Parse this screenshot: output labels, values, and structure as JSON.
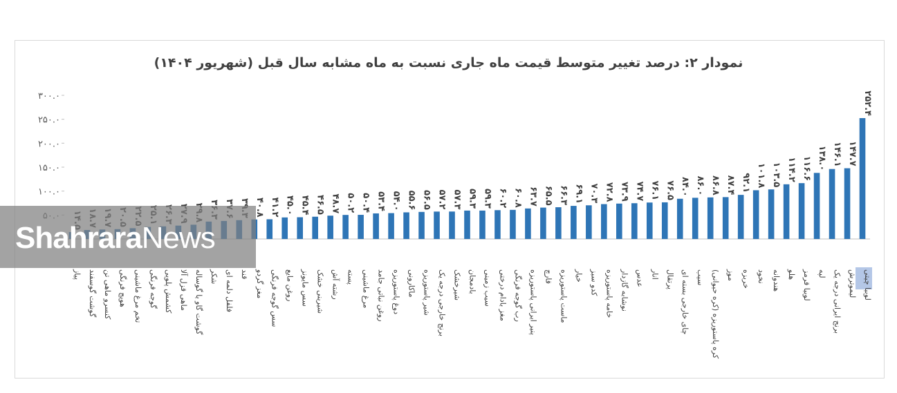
{
  "chart_data": {
    "type": "bar",
    "title": "نمودار ۲: درصد تغییر متوسط قیمت ماه جاری نسبت به ماه مشابه سال قبل (شهریور ۱۴۰۴)",
    "ylim": [
      0,
      300
    ],
    "y_ticks": [
      "۰.۰",
      "۵۰.۰",
      "۱۰۰.۰",
      "۱۵۰.۰",
      "۲۰۰.۰",
      "۲۵۰.۰",
      "۳۰۰.۰"
    ],
    "grid": false,
    "legend": "none",
    "bar_color": "#2e75b6",
    "categories": [
      "پیاز",
      "گوشت گوسفند",
      "کنسرو ماهی تن",
      "هویج فرنگی",
      "تخم مرغ ماشینی",
      "گوجه فرنگی",
      "کشمش پلویی",
      "ماهی قزل آلا",
      "گوشت گاو یا گوساله",
      "شکر",
      "فلفل دلمه ای",
      "قند",
      "مغز گردو",
      "سس گوجه فرنگی",
      "روغن مایع",
      "سس مایونز",
      "شیرینی خشک",
      "رشته آش",
      "پسته",
      "مرغ ماشینی",
      "روغن نباتی جامد",
      "دوغ پاستوریزه",
      "ماکارونی",
      "شیر پاستوریزه",
      "برنج خارجی درجه یک",
      "شیرخشک",
      "بادمجان",
      "سیب زمینی",
      "مغز بادام درختی",
      "رب گوجه فرنگی",
      "پنیر ایرانی پاستوریزه",
      "قارچ",
      "ماست پاستوریزه",
      "خیار",
      "کدو سبز",
      "خامه پاستوریزه",
      "نوشابه گازدار",
      "عدس",
      "انار",
      "پرتقال",
      "چای خارجی بسته ای",
      "سیب",
      "کره پاستوریزه (کره حیوانی)",
      "موز",
      "خربزه",
      "نخود",
      "هندوانه",
      "هلو",
      "لوبیا قرمز",
      "لپه",
      "برنج ایرانی درجه یک",
      "لیموترش",
      "لوبیا چیتی"
    ],
    "category_labels": [
      "پیاز",
      "گوشت گوسفند",
      "کنسرو ماهی تن",
      "هویج فرنگی",
      "تخم مرغ ماشینی",
      "گوجه فرنگی",
      "کشمش پلویی",
      "ماهی قزل آلا",
      "گوشت گاو یا گوساله",
      "شکر",
      "فلفل دلمه ای",
      "قند",
      "مغز گردو",
      "سس گوجه فرنگی",
      "روغن مایع",
      "سس مایونز",
      "شیرینی خشک",
      "رشته آش",
      "پسته",
      "مرغ ماشینی",
      "روغن نباتی جامد",
      "دوغ پاستوریزه",
      "ماکارونی",
      "شیر پاستوریزه",
      "برنج خارجی درجه یک",
      "شیرخشک",
      "بادمجان",
      "سیب زمینی",
      "مغز بادام درختی",
      "رب گوجه فرنگی",
      "پنیر ایرانی پاستوریزه",
      "قارچ",
      "ماست پاستوریزه",
      "خیار",
      "کدو سبز",
      "خامه پاستوریزه",
      "نوشابه گازدار",
      "عدس",
      "انار",
      "پرتقال",
      "چای خارجی بسته ای",
      "سیب",
      "کره پاستوریزه (کره حیوانی)",
      "موز",
      "خربزه",
      "نخود",
      "هندوانه",
      "هلو",
      "لوبیا قرمز",
      "لپه",
      "برنج ایرانی درجه یک",
      "لیموترش",
      "لوبیا چیتی"
    ],
    "values": [
      14.5,
      18.7,
      19.7,
      20.5,
      22.5,
      25.1,
      26.3,
      27.9,
      29.8,
      36.3,
      37.6,
      39.3,
      40.8,
      41.2,
      45.0,
      45.4,
      46.5,
      48.7,
      50.2,
      50.4,
      53.4,
      54.0,
      55.6,
      56.5,
      57.2,
      57.3,
      59.3,
      59.3,
      60.2,
      60.8,
      63.7,
      65.5,
      66.3,
      69.1,
      70.3,
      72.8,
      73.9,
      74.7,
      76.1,
      76.5,
      84.0,
      86.0,
      86.8,
      87.4,
      92.1,
      101.8,
      103.5,
      114.2,
      116.6,
      138.0,
      146.1,
      147.7,
      252.4
    ],
    "value_labels": [
      "۱۴.۵",
      "۱۸.۷",
      "۱۹.۷",
      "۲۰.۵",
      "۲۲.۵",
      "۲۵.۱",
      "۲۶.۳",
      "۲۷.۹",
      "۲۹.۸",
      "۳۶.۳",
      "۳۷.۶",
      "۳۹.۳",
      "۴۰.۸",
      "۴۱.۲",
      "۴۵.۰",
      "۴۵.۴",
      "۴۶.۵",
      "۴۸.۷",
      "۵۰.۲",
      "۵۰.۴",
      "۵۳.۴",
      "۵۴.۰",
      "۵۵.۶",
      "۵۶.۵",
      "۵۷.۲",
      "۵۷.۳",
      "۵۹.۳",
      "۵۹.۳",
      "۶۰.۲",
      "۶۰.۸",
      "۶۳.۷",
      "۶۵.۵",
      "۶۶.۳",
      "۶۹.۱",
      "۷۰.۳",
      "۷۲.۸",
      "۷۳.۹",
      "۷۴.۷",
      "۷۶.۱",
      "۷۶.۵",
      "۸۴.۰",
      "۸۶.۰",
      "۸۶.۸",
      "۸۷.۴",
      "۹۲.۱",
      "۱۰۱.۸",
      "۱۰۳.۵",
      "۱۱۴.۲",
      "۱۱۶.۶",
      "۱۳۸.۰",
      "۱۴۶.۱",
      "۱۴۷.۷",
      "۲۵۲.۴"
    ]
  },
  "watermark": {
    "part1": "Shahrara",
    "part2": "News"
  },
  "colors": {
    "bar": "#2e75b6",
    "highlight": "#b4c7e7",
    "watermark_bg": "#808080"
  }
}
